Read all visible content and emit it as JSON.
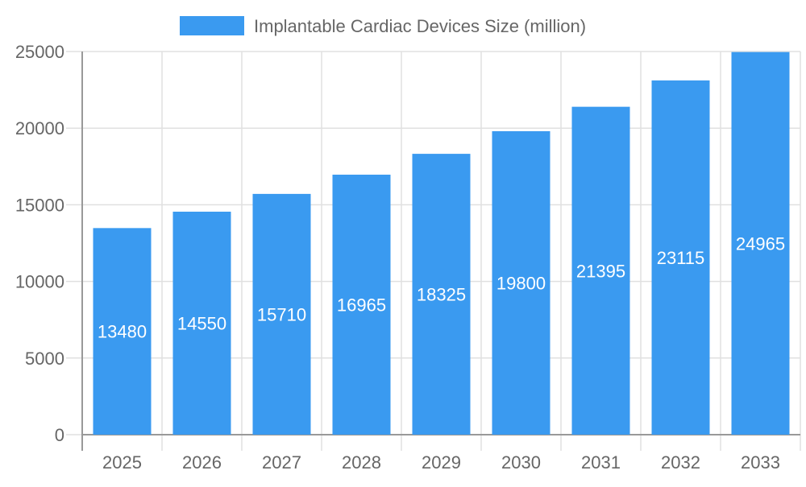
{
  "chart_data": {
    "type": "bar",
    "categories": [
      "2025",
      "2026",
      "2027",
      "2028",
      "2029",
      "2030",
      "2031",
      "2032",
      "2033"
    ],
    "series": [
      {
        "name": "Implantable Cardiac Devices Size (million)",
        "values": [
          13480,
          14550,
          15710,
          16965,
          18325,
          19800,
          21395,
          23115,
          24965
        ],
        "color": "#3a9af0"
      }
    ],
    "title": "",
    "xlabel": "",
    "ylabel": "",
    "ylim": [
      0,
      25000
    ],
    "yticks": [
      "0",
      "5000",
      "10000",
      "15000",
      "20000",
      "25000"
    ],
    "grid": true,
    "legend": "top-center",
    "data_labels": true
  }
}
